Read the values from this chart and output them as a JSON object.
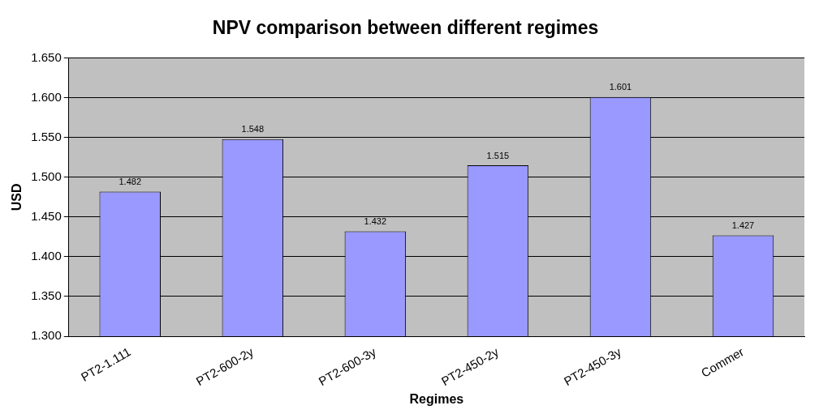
{
  "chart_data": {
    "type": "bar",
    "title": "NPV comparison between different regimes",
    "xlabel": "Regimes",
    "ylabel": "USD",
    "categories": [
      "PT2-1.111",
      "PT2-600-2y",
      "PT2-600-3y",
      "PT2-450-2y",
      "PT2-450-3y",
      "Commer"
    ],
    "values": [
      1.482,
      1.548,
      1.432,
      1.515,
      1.601,
      1.427
    ],
    "color": "#9999ff",
    "ylim": [
      1.3,
      1.65
    ],
    "yticks": [
      {
        "value": 1.3,
        "label": "1.300"
      },
      {
        "value": 1.35,
        "label": "1.350"
      },
      {
        "value": 1.4,
        "label": "1.400"
      },
      {
        "value": 1.45,
        "label": "1.450"
      },
      {
        "value": 1.5,
        "label": "1.500"
      },
      {
        "value": 1.55,
        "label": "1.550"
      },
      {
        "value": 1.6,
        "label": "1.600"
      },
      {
        "value": 1.65,
        "label": "1.650"
      }
    ],
    "grid": "y",
    "legend": false,
    "data_labels": true
  }
}
